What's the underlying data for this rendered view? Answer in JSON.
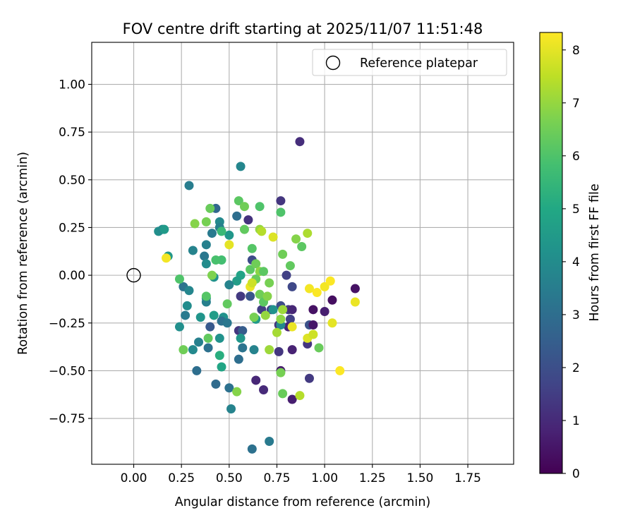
{
  "chart_data": {
    "type": "scatter",
    "title": "FOV centre drift starting at 2025/11/07 11:51:48",
    "xlabel": "Angular distance from reference (arcmin)",
    "ylabel": "Rotation from reference (arcmin)",
    "xlim": [
      -0.22,
      1.99
    ],
    "ylim": [
      -0.99,
      1.22
    ],
    "xticks": [
      0.0,
      0.25,
      0.5,
      0.75,
      1.0,
      1.25,
      1.5,
      1.75
    ],
    "xtick_labels": [
      "0.00",
      "0.25",
      "0.50",
      "0.75",
      "1.00",
      "1.25",
      "1.50",
      "1.75"
    ],
    "yticks": [
      -0.75,
      -0.5,
      -0.25,
      0.0,
      0.25,
      0.5,
      0.75,
      1.0
    ],
    "ytick_labels": [
      "−0.75",
      "−0.50",
      "−0.25",
      "0.00",
      "0.25",
      "0.50",
      "0.75",
      "1.00"
    ],
    "grid": true,
    "legend": {
      "placement": "top-right",
      "label": "Reference platepar"
    },
    "reference_point": {
      "x": 0.0,
      "y": 0.0
    },
    "colorbar": {
      "label": "Hours from first FF file",
      "min": 0,
      "max": 8.33,
      "ticks": [
        0,
        1,
        2,
        3,
        4,
        5,
        6,
        7,
        8
      ],
      "tick_labels": [
        "0",
        "1",
        "2",
        "3",
        "4",
        "5",
        "6",
        "7",
        "8"
      ],
      "colormap": "viridis"
    },
    "points": [
      {
        "x": 0.87,
        "y": 0.7,
        "h": 1.1
      },
      {
        "x": 0.77,
        "y": 0.39,
        "h": 1.3
      },
      {
        "x": 0.6,
        "y": 0.29,
        "h": 1.2
      },
      {
        "x": 0.8,
        "y": 0.0,
        "h": 1.6
      },
      {
        "x": 0.83,
        "y": -0.06,
        "h": 1.8
      },
      {
        "x": 0.62,
        "y": 0.08,
        "h": 1.9
      },
      {
        "x": 0.56,
        "y": -0.11,
        "h": 1.4
      },
      {
        "x": 0.61,
        "y": -0.11,
        "h": 2.2
      },
      {
        "x": 0.67,
        "y": -0.18,
        "h": 1.5
      },
      {
        "x": 0.72,
        "y": -0.18,
        "h": 1.7
      },
      {
        "x": 0.77,
        "y": -0.16,
        "h": 1.9
      },
      {
        "x": 0.81,
        "y": -0.18,
        "h": 1.4
      },
      {
        "x": 0.83,
        "y": -0.18,
        "h": 0.9
      },
      {
        "x": 0.82,
        "y": -0.23,
        "h": 1.6
      },
      {
        "x": 0.81,
        "y": -0.27,
        "h": 0.8
      },
      {
        "x": 0.76,
        "y": -0.26,
        "h": 1.2
      },
      {
        "x": 0.55,
        "y": -0.29,
        "h": 1.3
      },
      {
        "x": 0.57,
        "y": -0.29,
        "h": 2.4
      },
      {
        "x": 0.76,
        "y": -0.4,
        "h": 1.3
      },
      {
        "x": 0.83,
        "y": -0.39,
        "h": 0.8
      },
      {
        "x": 0.77,
        "y": -0.5,
        "h": 0.6
      },
      {
        "x": 0.64,
        "y": -0.55,
        "h": 0.9
      },
      {
        "x": 0.68,
        "y": -0.6,
        "h": 1.0
      },
      {
        "x": 0.83,
        "y": -0.65,
        "h": 0.7
      },
      {
        "x": 0.91,
        "y": -0.36,
        "h": 1.3
      },
      {
        "x": 0.92,
        "y": -0.54,
        "h": 1.4
      },
      {
        "x": 0.92,
        "y": -0.26,
        "h": 2.1
      },
      {
        "x": 0.94,
        "y": -0.26,
        "h": 0.5
      },
      {
        "x": 0.94,
        "y": -0.18,
        "h": 0.4
      },
      {
        "x": 1.0,
        "y": -0.19,
        "h": 0.7
      },
      {
        "x": 1.04,
        "y": -0.13,
        "h": 0.3
      },
      {
        "x": 1.16,
        "y": -0.07,
        "h": 0.4
      },
      {
        "x": 0.29,
        "y": 0.47,
        "h": 3.5
      },
      {
        "x": 0.56,
        "y": 0.57,
        "h": 3.8
      },
      {
        "x": 0.43,
        "y": 0.35,
        "h": 2.8
      },
      {
        "x": 0.45,
        "y": 0.28,
        "h": 3.9
      },
      {
        "x": 0.45,
        "y": 0.25,
        "h": 3.6
      },
      {
        "x": 0.54,
        "y": 0.31,
        "h": 3.0
      },
      {
        "x": 0.41,
        "y": 0.22,
        "h": 3.4
      },
      {
        "x": 0.13,
        "y": 0.23,
        "h": 4.1
      },
      {
        "x": 0.15,
        "y": 0.24,
        "h": 3.9
      },
      {
        "x": 0.16,
        "y": 0.24,
        "h": 4.5
      },
      {
        "x": 0.18,
        "y": 0.1,
        "h": 4.4
      },
      {
        "x": 0.31,
        "y": 0.13,
        "h": 3.7
      },
      {
        "x": 0.38,
        "y": 0.16,
        "h": 3.6
      },
      {
        "x": 0.37,
        "y": 0.1,
        "h": 3.3
      },
      {
        "x": 0.38,
        "y": 0.06,
        "h": 4.0
      },
      {
        "x": 0.42,
        "y": -0.01,
        "h": 4.2
      },
      {
        "x": 0.5,
        "y": 0.21,
        "h": 4.4
      },
      {
        "x": 0.56,
        "y": 0.0,
        "h": 4.8
      },
      {
        "x": 0.54,
        "y": -0.03,
        "h": 4.6
      },
      {
        "x": 0.5,
        "y": -0.05,
        "h": 3.7
      },
      {
        "x": 0.26,
        "y": -0.06,
        "h": 3.2
      },
      {
        "x": 0.29,
        "y": -0.08,
        "h": 3.8
      },
      {
        "x": 0.38,
        "y": -0.12,
        "h": 4.1
      },
      {
        "x": 0.38,
        "y": -0.14,
        "h": 3.6
      },
      {
        "x": 0.28,
        "y": -0.16,
        "h": 4.0
      },
      {
        "x": 0.27,
        "y": -0.21,
        "h": 3.4
      },
      {
        "x": 0.35,
        "y": -0.22,
        "h": 4.3
      },
      {
        "x": 0.42,
        "y": -0.21,
        "h": 4.6
      },
      {
        "x": 0.47,
        "y": -0.22,
        "h": 4.2
      },
      {
        "x": 0.46,
        "y": -0.24,
        "h": 3.1
      },
      {
        "x": 0.49,
        "y": -0.25,
        "h": 3.3
      },
      {
        "x": 0.4,
        "y": -0.27,
        "h": 2.3
      },
      {
        "x": 0.24,
        "y": -0.27,
        "h": 4.1
      },
      {
        "x": 0.34,
        "y": -0.35,
        "h": 3.6
      },
      {
        "x": 0.31,
        "y": -0.39,
        "h": 3.9
      },
      {
        "x": 0.39,
        "y": -0.38,
        "h": 3.1
      },
      {
        "x": 0.45,
        "y": -0.33,
        "h": 4.2
      },
      {
        "x": 0.56,
        "y": -0.33,
        "h": 4.4
      },
      {
        "x": 0.57,
        "y": -0.38,
        "h": 3.2
      },
      {
        "x": 0.55,
        "y": -0.44,
        "h": 3.0
      },
      {
        "x": 0.63,
        "y": -0.39,
        "h": 3.7
      },
      {
        "x": 0.73,
        "y": -0.18,
        "h": 4.2
      },
      {
        "x": 0.64,
        "y": -0.23,
        "h": 4.5
      },
      {
        "x": 0.77,
        "y": -0.26,
        "h": 3.9
      },
      {
        "x": 0.33,
        "y": -0.5,
        "h": 3.0
      },
      {
        "x": 0.43,
        "y": -0.57,
        "h": 2.9
      },
      {
        "x": 0.5,
        "y": -0.59,
        "h": 3.1
      },
      {
        "x": 0.51,
        "y": -0.7,
        "h": 3.7
      },
      {
        "x": 0.62,
        "y": -0.91,
        "h": 3.1
      },
      {
        "x": 0.71,
        "y": -0.87,
        "h": 3.4
      },
      {
        "x": 0.45,
        "y": -0.42,
        "h": 5.2
      },
      {
        "x": 0.46,
        "y": -0.48,
        "h": 4.9
      },
      {
        "x": 0.55,
        "y": 0.39,
        "h": 6.2
      },
      {
        "x": 0.58,
        "y": 0.36,
        "h": 6.5
      },
      {
        "x": 0.66,
        "y": 0.36,
        "h": 6.0
      },
      {
        "x": 0.4,
        "y": 0.35,
        "h": 6.4
      },
      {
        "x": 0.38,
        "y": 0.28,
        "h": 6.6
      },
      {
        "x": 0.32,
        "y": 0.27,
        "h": 6.8
      },
      {
        "x": 0.46,
        "y": 0.23,
        "h": 5.6
      },
      {
        "x": 0.58,
        "y": 0.24,
        "h": 6.3
      },
      {
        "x": 0.66,
        "y": 0.24,
        "h": 7.0
      },
      {
        "x": 0.67,
        "y": 0.23,
        "h": 7.4
      },
      {
        "x": 0.77,
        "y": 0.33,
        "h": 6.0
      },
      {
        "x": 0.62,
        "y": 0.14,
        "h": 6.1
      },
      {
        "x": 0.78,
        "y": 0.11,
        "h": 6.5
      },
      {
        "x": 0.82,
        "y": 0.05,
        "h": 6.3
      },
      {
        "x": 0.46,
        "y": 0.08,
        "h": 5.8
      },
      {
        "x": 0.41,
        "y": 0.0,
        "h": 6.7
      },
      {
        "x": 0.61,
        "y": 0.03,
        "h": 6.2
      },
      {
        "x": 0.64,
        "y": 0.06,
        "h": 6.5
      },
      {
        "x": 0.66,
        "y": 0.02,
        "h": 6.9
      },
      {
        "x": 0.68,
        "y": 0.02,
        "h": 6.2
      },
      {
        "x": 0.64,
        "y": -0.02,
        "h": 6.4
      },
      {
        "x": 0.71,
        "y": -0.04,
        "h": 6.6
      },
      {
        "x": 0.24,
        "y": -0.02,
        "h": 6.0
      },
      {
        "x": 0.38,
        "y": -0.11,
        "h": 6.1
      },
      {
        "x": 0.49,
        "y": -0.15,
        "h": 6.3
      },
      {
        "x": 0.66,
        "y": -0.1,
        "h": 6.5
      },
      {
        "x": 0.68,
        "y": -0.14,
        "h": 6.2
      },
      {
        "x": 0.7,
        "y": -0.11,
        "h": 6.8
      },
      {
        "x": 0.69,
        "y": -0.21,
        "h": 7.0
      },
      {
        "x": 0.78,
        "y": -0.18,
        "h": 7.1
      },
      {
        "x": 0.77,
        "y": -0.23,
        "h": 6.9
      },
      {
        "x": 0.63,
        "y": -0.22,
        "h": 6.6
      },
      {
        "x": 0.75,
        "y": -0.3,
        "h": 7.2
      },
      {
        "x": 0.71,
        "y": -0.39,
        "h": 7.1
      },
      {
        "x": 0.77,
        "y": -0.51,
        "h": 6.6
      },
      {
        "x": 0.78,
        "y": -0.62,
        "h": 6.4
      },
      {
        "x": 0.54,
        "y": -0.61,
        "h": 6.8
      },
      {
        "x": 0.26,
        "y": -0.39,
        "h": 6.5
      },
      {
        "x": 0.39,
        "y": -0.33,
        "h": 6.3
      },
      {
        "x": 0.43,
        "y": 0.08,
        "h": 5.9
      },
      {
        "x": 0.85,
        "y": 0.19,
        "h": 6.8
      },
      {
        "x": 0.88,
        "y": 0.15,
        "h": 6.2
      },
      {
        "x": 0.91,
        "y": 0.22,
        "h": 7.3
      },
      {
        "x": 0.87,
        "y": -0.63,
        "h": 7.4
      },
      {
        "x": 0.97,
        "y": -0.38,
        "h": 6.4
      },
      {
        "x": 0.17,
        "y": 0.09,
        "h": 8.2
      },
      {
        "x": 0.5,
        "y": 0.16,
        "h": 8.0
      },
      {
        "x": 0.73,
        "y": 0.2,
        "h": 7.9
      },
      {
        "x": 0.61,
        "y": -0.06,
        "h": 8.1
      },
      {
        "x": 0.62,
        "y": -0.04,
        "h": 7.7
      },
      {
        "x": 0.83,
        "y": -0.27,
        "h": 8.1
      },
      {
        "x": 0.92,
        "y": -0.07,
        "h": 8.2
      },
      {
        "x": 0.96,
        "y": -0.09,
        "h": 8.3
      },
      {
        "x": 1.0,
        "y": -0.06,
        "h": 8.2
      },
      {
        "x": 1.03,
        "y": -0.03,
        "h": 8.3
      },
      {
        "x": 1.04,
        "y": -0.25,
        "h": 8.0
      },
      {
        "x": 0.91,
        "y": -0.33,
        "h": 7.9
      },
      {
        "x": 0.94,
        "y": -0.31,
        "h": 7.7
      },
      {
        "x": 1.08,
        "y": -0.5,
        "h": 8.3
      },
      {
        "x": 1.16,
        "y": -0.14,
        "h": 8.1
      }
    ]
  }
}
